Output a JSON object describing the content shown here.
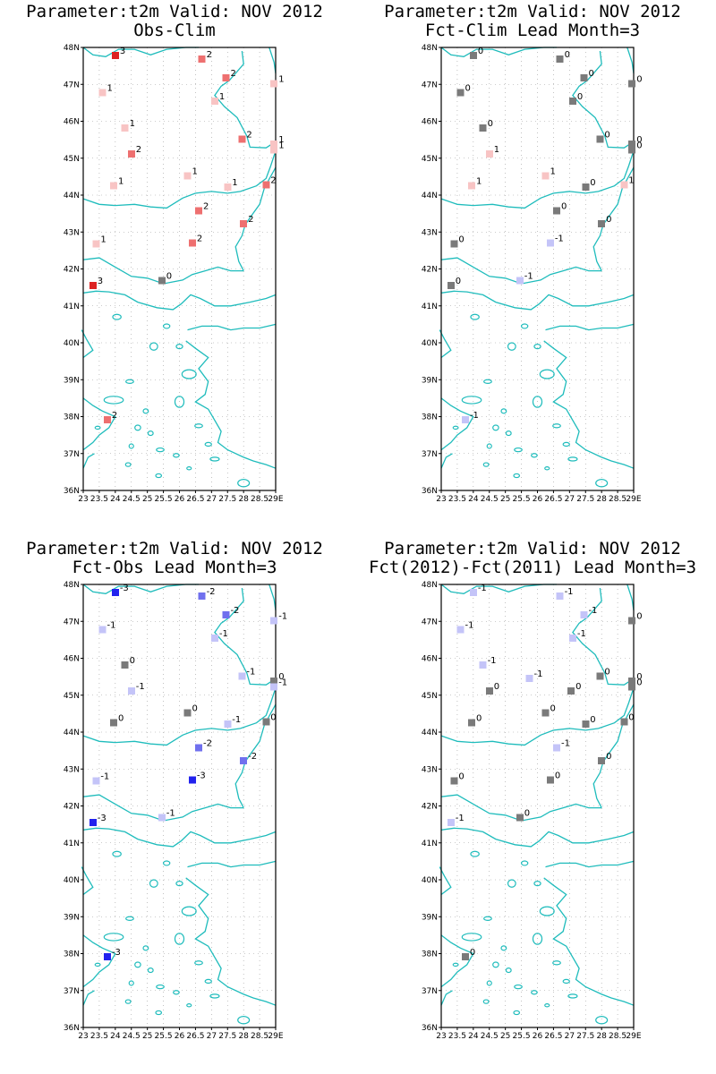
{
  "colors": {
    "coast": "#1fbcbc",
    "grid": "#9a9a9a",
    "legend": {
      "-3": "#2222ee",
      "-2": "#7070ee",
      "-1": "#c4c4f8",
      "0": "#7a7a7a",
      "1": "#f8c4c4",
      "2": "#ee7070",
      "3": "#dd2222"
    }
  },
  "chart_data": [
    {
      "type": "scatter",
      "title_line1": "Parameter:t2m Valid: NOV 2012",
      "title_line2": "Obs-Clim",
      "xlim": [
        23,
        29
      ],
      "ylim": [
        36,
        48
      ],
      "x_tick_labels": [
        "23",
        "23.5",
        "24",
        "24.5",
        "25",
        "25.5",
        "26",
        "26.5",
        "27",
        "27.5",
        "28",
        "28.5",
        "29E"
      ],
      "y_tick_labels": [
        "36N",
        "37N",
        "38N",
        "39N",
        "40N",
        "41N",
        "42N",
        "43N",
        "44N",
        "45N",
        "46N",
        "47N",
        "48N"
      ],
      "stations": [
        {
          "lon": 24.0,
          "lat": 47.78,
          "value": 3,
          "label": "3"
        },
        {
          "lon": 26.7,
          "lat": 47.68,
          "value": 2,
          "label": "2"
        },
        {
          "lon": 27.45,
          "lat": 47.18,
          "value": 2,
          "label": "2"
        },
        {
          "lon": 28.95,
          "lat": 47.02,
          "value": 1,
          "label": "1"
        },
        {
          "lon": 23.6,
          "lat": 46.78,
          "value": 1,
          "label": "1"
        },
        {
          "lon": 27.1,
          "lat": 46.55,
          "value": 1,
          "label": "1"
        },
        {
          "lon": 24.3,
          "lat": 45.82,
          "value": 1,
          "label": "1"
        },
        {
          "lon": 27.95,
          "lat": 45.52,
          "value": 2,
          "label": "2"
        },
        {
          "lon": 28.95,
          "lat": 45.38,
          "value": 1,
          "label": "1"
        },
        {
          "lon": 24.5,
          "lat": 45.12,
          "value": 2,
          "label": "2"
        },
        {
          "lon": 28.95,
          "lat": 45.22,
          "value": 1,
          "label": "1"
        },
        {
          "lon": 26.25,
          "lat": 44.52,
          "value": 1,
          "label": "1"
        },
        {
          "lon": 23.95,
          "lat": 44.25,
          "value": 1,
          "label": "1"
        },
        {
          "lon": 27.5,
          "lat": 44.22,
          "value": 1,
          "label": "1"
        },
        {
          "lon": 28.7,
          "lat": 44.28,
          "value": 2,
          "label": "2"
        },
        {
          "lon": 26.6,
          "lat": 43.58,
          "value": 2,
          "label": "2"
        },
        {
          "lon": 28.0,
          "lat": 43.22,
          "value": 2,
          "label": "2"
        },
        {
          "lon": 23.4,
          "lat": 42.68,
          "value": 1,
          "label": "1"
        },
        {
          "lon": 26.4,
          "lat": 42.7,
          "value": 2,
          "label": "2"
        },
        {
          "lon": 25.45,
          "lat": 41.68,
          "value": 0,
          "label": "0"
        },
        {
          "lon": 23.3,
          "lat": 41.55,
          "value": 3,
          "label": "3"
        },
        {
          "lon": 23.75,
          "lat": 37.92,
          "value": 2,
          "label": "2"
        }
      ]
    },
    {
      "type": "scatter",
      "title_line1": "Parameter:t2m Valid: NOV 2012",
      "title_line2": "Fct-Clim Lead Month=3",
      "xlim": [
        23,
        29
      ],
      "ylim": [
        36,
        48
      ],
      "x_tick_labels": [
        "23",
        "23.5",
        "24",
        "24.5",
        "25",
        "25.5",
        "26",
        "26.5",
        "27",
        "27.5",
        "28",
        "28.5",
        "29E"
      ],
      "y_tick_labels": [
        "36N",
        "37N",
        "38N",
        "39N",
        "40N",
        "41N",
        "42N",
        "43N",
        "44N",
        "45N",
        "46N",
        "47N",
        "48N"
      ],
      "stations": [
        {
          "lon": 24.0,
          "lat": 47.78,
          "value": 0,
          "label": "0"
        },
        {
          "lon": 26.7,
          "lat": 47.68,
          "value": 0,
          "label": "0"
        },
        {
          "lon": 27.45,
          "lat": 47.18,
          "value": 0,
          "label": "0"
        },
        {
          "lon": 28.95,
          "lat": 47.02,
          "value": 0,
          "label": "0"
        },
        {
          "lon": 23.6,
          "lat": 46.78,
          "value": 0,
          "label": "0"
        },
        {
          "lon": 27.1,
          "lat": 46.55,
          "value": 0,
          "label": "0"
        },
        {
          "lon": 24.3,
          "lat": 45.82,
          "value": 0,
          "label": "0"
        },
        {
          "lon": 27.95,
          "lat": 45.52,
          "value": 0,
          "label": "0"
        },
        {
          "lon": 28.95,
          "lat": 45.38,
          "value": 0,
          "label": "0"
        },
        {
          "lon": 24.5,
          "lat": 45.12,
          "value": 1,
          "label": "1"
        },
        {
          "lon": 28.95,
          "lat": 45.22,
          "value": 0,
          "label": "0"
        },
        {
          "lon": 26.25,
          "lat": 44.52,
          "value": 1,
          "label": "1"
        },
        {
          "lon": 23.95,
          "lat": 44.25,
          "value": 1,
          "label": "1"
        },
        {
          "lon": 27.5,
          "lat": 44.22,
          "value": 0,
          "label": "0"
        },
        {
          "lon": 28.7,
          "lat": 44.28,
          "value": 1,
          "label": "1"
        },
        {
          "lon": 26.6,
          "lat": 43.58,
          "value": 0,
          "label": "0"
        },
        {
          "lon": 28.0,
          "lat": 43.22,
          "value": 0,
          "label": "0"
        },
        {
          "lon": 23.4,
          "lat": 42.68,
          "value": 0,
          "label": "0"
        },
        {
          "lon": 26.4,
          "lat": 42.7,
          "value": -1,
          "label": "-1"
        },
        {
          "lon": 25.45,
          "lat": 41.68,
          "value": -1,
          "label": "-1"
        },
        {
          "lon": 23.3,
          "lat": 41.55,
          "value": 0,
          "label": "0"
        },
        {
          "lon": 23.75,
          "lat": 37.92,
          "value": -1,
          "label": "-1"
        }
      ]
    },
    {
      "type": "scatter",
      "title_line1": "Parameter:t2m Valid: NOV 2012",
      "title_line2": "Fct-Obs Lead Month=3",
      "xlim": [
        23,
        29
      ],
      "ylim": [
        36,
        48
      ],
      "x_tick_labels": [
        "23",
        "23.5",
        "24",
        "24.5",
        "25",
        "25.5",
        "26",
        "26.5",
        "27",
        "27.5",
        "28",
        "28.5",
        "29E"
      ],
      "y_tick_labels": [
        "36N",
        "37N",
        "38N",
        "39N",
        "40N",
        "41N",
        "42N",
        "43N",
        "44N",
        "45N",
        "46N",
        "47N",
        "48N"
      ],
      "stations": [
        {
          "lon": 24.0,
          "lat": 47.78,
          "value": -3,
          "label": "-3"
        },
        {
          "lon": 26.7,
          "lat": 47.68,
          "value": -2,
          "label": "-2"
        },
        {
          "lon": 27.45,
          "lat": 47.18,
          "value": -2,
          "label": "-2"
        },
        {
          "lon": 28.95,
          "lat": 47.02,
          "value": -1,
          "label": "-1"
        },
        {
          "lon": 23.6,
          "lat": 46.78,
          "value": -1,
          "label": "-1"
        },
        {
          "lon": 27.1,
          "lat": 46.55,
          "value": -1,
          "label": "-1"
        },
        {
          "lon": 24.3,
          "lat": 45.82,
          "value": 0,
          "label": "0"
        },
        {
          "lon": 27.95,
          "lat": 45.52,
          "value": -1,
          "label": "-1"
        },
        {
          "lon": 28.95,
          "lat": 45.38,
          "value": 0,
          "label": "0"
        },
        {
          "lon": 24.5,
          "lat": 45.12,
          "value": -1,
          "label": "-1"
        },
        {
          "lon": 28.95,
          "lat": 45.22,
          "value": -1,
          "label": "-1"
        },
        {
          "lon": 26.25,
          "lat": 44.52,
          "value": 0,
          "label": "0"
        },
        {
          "lon": 23.95,
          "lat": 44.25,
          "value": 0,
          "label": "0"
        },
        {
          "lon": 27.5,
          "lat": 44.22,
          "value": -1,
          "label": "-1"
        },
        {
          "lon": 28.7,
          "lat": 44.28,
          "value": 0,
          "label": "0"
        },
        {
          "lon": 26.6,
          "lat": 43.58,
          "value": -2,
          "label": "-2"
        },
        {
          "lon": 28.0,
          "lat": 43.22,
          "value": -2,
          "label": "-2"
        },
        {
          "lon": 23.4,
          "lat": 42.68,
          "value": -1,
          "label": "-1"
        },
        {
          "lon": 26.4,
          "lat": 42.7,
          "value": -3,
          "label": "-3"
        },
        {
          "lon": 25.45,
          "lat": 41.68,
          "value": -1,
          "label": "-1"
        },
        {
          "lon": 23.3,
          "lat": 41.55,
          "value": -3,
          "label": "-3"
        },
        {
          "lon": 23.75,
          "lat": 37.92,
          "value": -3,
          "label": "-3"
        }
      ]
    },
    {
      "type": "scatter",
      "title_line1": "Parameter:t2m Valid: NOV 2012",
      "title_line2": "Fct(2012)-Fct(2011) Lead Month=3",
      "xlim": [
        23,
        29
      ],
      "ylim": [
        36,
        48
      ],
      "x_tick_labels": [
        "23",
        "23.5",
        "24",
        "24.5",
        "25",
        "25.5",
        "26",
        "26.5",
        "27",
        "27.5",
        "28",
        "28.5",
        "29E"
      ],
      "y_tick_labels": [
        "36N",
        "37N",
        "38N",
        "39N",
        "40N",
        "41N",
        "42N",
        "43N",
        "44N",
        "45N",
        "46N",
        "47N",
        "48N"
      ],
      "stations": [
        {
          "lon": 24.0,
          "lat": 47.78,
          "value": -1,
          "label": "-1"
        },
        {
          "lon": 26.7,
          "lat": 47.68,
          "value": -1,
          "label": "-1"
        },
        {
          "lon": 27.45,
          "lat": 47.18,
          "value": -1,
          "label": "-1"
        },
        {
          "lon": 28.95,
          "lat": 47.02,
          "value": 0,
          "label": "0"
        },
        {
          "lon": 23.6,
          "lat": 46.78,
          "value": -1,
          "label": "-1"
        },
        {
          "lon": 27.1,
          "lat": 46.55,
          "value": -1,
          "label": "-1"
        },
        {
          "lon": 24.3,
          "lat": 45.82,
          "value": -1,
          "label": "-1"
        },
        {
          "lon": 25.75,
          "lat": 45.45,
          "value": -1,
          "label": "-1"
        },
        {
          "lon": 27.95,
          "lat": 45.52,
          "value": 0,
          "label": "0"
        },
        {
          "lon": 28.95,
          "lat": 45.38,
          "value": 0,
          "label": "0"
        },
        {
          "lon": 24.5,
          "lat": 45.12,
          "value": 0,
          "label": "0"
        },
        {
          "lon": 28.95,
          "lat": 45.22,
          "value": 0,
          "label": "0"
        },
        {
          "lon": 27.05,
          "lat": 45.12,
          "value": 0,
          "label": "0"
        },
        {
          "lon": 26.25,
          "lat": 44.52,
          "value": 0,
          "label": "0"
        },
        {
          "lon": 23.95,
          "lat": 44.25,
          "value": 0,
          "label": "0"
        },
        {
          "lon": 27.5,
          "lat": 44.22,
          "value": 0,
          "label": "0"
        },
        {
          "lon": 28.7,
          "lat": 44.28,
          "value": 0,
          "label": "0"
        },
        {
          "lon": 26.6,
          "lat": 43.58,
          "value": -1,
          "label": "-1"
        },
        {
          "lon": 28.0,
          "lat": 43.22,
          "value": 0,
          "label": "0"
        },
        {
          "lon": 23.4,
          "lat": 42.68,
          "value": 0,
          "label": "0"
        },
        {
          "lon": 26.4,
          "lat": 42.7,
          "value": 0,
          "label": "0"
        },
        {
          "lon": 25.45,
          "lat": 41.68,
          "value": 0,
          "label": "0"
        },
        {
          "lon": 23.3,
          "lat": 41.55,
          "value": -1,
          "label": "-1"
        },
        {
          "lon": 23.75,
          "lat": 37.92,
          "value": 0,
          "label": "0"
        }
      ]
    }
  ]
}
